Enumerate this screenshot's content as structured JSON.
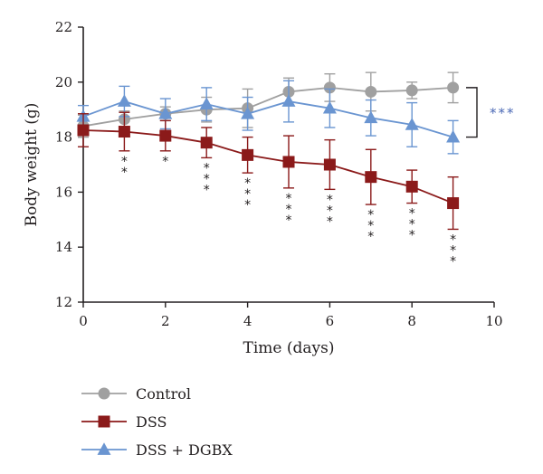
{
  "chart_data": {
    "type": "line",
    "title": "",
    "xlabel": "Time (days)",
    "ylabel": "Body weight (g)",
    "xlim": [
      0,
      10
    ],
    "ylim": [
      12,
      22
    ],
    "xticks": [
      0,
      2,
      4,
      6,
      8,
      10
    ],
    "yticks": [
      12,
      14,
      16,
      18,
      20,
      22
    ],
    "grid": false,
    "legend_position": "bottom-left",
    "x": [
      0,
      1,
      2,
      3,
      4,
      5,
      6,
      7,
      8,
      9
    ],
    "series": [
      {
        "name": "Control",
        "color": "#a0a0a0",
        "marker": "circle",
        "values": [
          18.4,
          18.65,
          18.85,
          19.0,
          19.05,
          19.65,
          19.8,
          19.65,
          19.7,
          19.8
        ],
        "errors": [
          0.4,
          0.3,
          0.25,
          0.45,
          0.7,
          0.5,
          0.5,
          0.7,
          0.3,
          0.55
        ]
      },
      {
        "name": "DSS",
        "color": "#8b1a1a",
        "marker": "square",
        "values": [
          18.25,
          18.2,
          18.05,
          17.8,
          17.35,
          17.1,
          17.0,
          16.55,
          16.2,
          15.6
        ],
        "errors": [
          0.6,
          0.7,
          0.55,
          0.55,
          0.65,
          0.95,
          0.9,
          1.0,
          0.6,
          0.95
        ]
      },
      {
        "name": "DSS + DGBX",
        "color": "#6a95d1",
        "marker": "triangle",
        "values": [
          18.75,
          19.3,
          18.85,
          19.2,
          18.85,
          19.3,
          19.05,
          18.7,
          18.45,
          18.0
        ],
        "errors": [
          0.4,
          0.55,
          0.55,
          0.6,
          0.6,
          0.75,
          0.7,
          0.65,
          0.8,
          0.6
        ]
      }
    ],
    "significance": [
      {
        "x": 1,
        "stars": "**"
      },
      {
        "x": 2,
        "stars": "*"
      },
      {
        "x": 3,
        "stars": "***"
      },
      {
        "x": 4,
        "stars": "***"
      },
      {
        "x": 5,
        "stars": "***"
      },
      {
        "x": 6,
        "stars": "***"
      },
      {
        "x": 7,
        "stars": "***"
      },
      {
        "x": 8,
        "stars": "***"
      },
      {
        "x": 9,
        "stars": "***"
      }
    ],
    "bracket_annotation": {
      "label": "***",
      "color": "#4a68b5",
      "between": [
        "Control",
        "DSS + DGBX"
      ]
    }
  }
}
